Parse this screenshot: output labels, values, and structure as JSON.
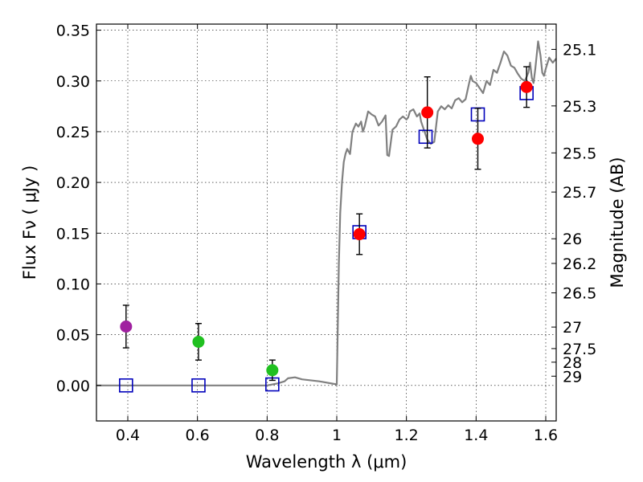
{
  "chart_data": {
    "type": "scatter",
    "xlabel": "Wavelength  λ (μm)",
    "ylabel": "Flux  Fν  ( μJy )",
    "ylabel_right": "Magnitude (AB)",
    "xlim": [
      0.31,
      1.63
    ],
    "ylim": [
      -0.035,
      0.356
    ],
    "grid": true,
    "x_ticks": [
      0.4,
      0.6,
      0.8,
      1.0,
      1.2,
      1.4,
      1.6
    ],
    "x_tick_labels": [
      "0.4",
      "0.6",
      "0.8",
      "1",
      "1.2",
      "1.4",
      "1.6"
    ],
    "y_ticks": [
      0.0,
      0.05,
      0.1,
      0.15,
      0.2,
      0.25,
      0.3,
      0.35
    ],
    "y_tick_labels": [
      "0.00",
      "0.05",
      "0.10",
      "0.15",
      "0.20",
      "0.25",
      "0.30",
      "0.35"
    ],
    "mag_ticks": [
      {
        "label": "25.1",
        "flux": 0.3311
      },
      {
        "label": "25.3",
        "flux": 0.2754
      },
      {
        "label": "25.5",
        "flux": 0.2291
      },
      {
        "label": "25.7",
        "flux": 0.1905
      },
      {
        "label": "26",
        "flux": 0.1445
      },
      {
        "label": "26.2",
        "flux": 0.1202
      },
      {
        "label": "26.5",
        "flux": 0.0912
      },
      {
        "label": "27",
        "flux": 0.0575
      },
      {
        "label": "27.5",
        "flux": 0.0363
      },
      {
        "label": "28",
        "flux": 0.0229
      },
      {
        "label": "29",
        "flux": 0.0091
      }
    ],
    "observed": [
      {
        "x": 0.395,
        "y": 0.058,
        "err": 0.021,
        "color": "#a020a0"
      },
      {
        "x": 0.603,
        "y": 0.043,
        "err": 0.018,
        "color": "#20c020"
      },
      {
        "x": 0.815,
        "y": 0.015,
        "err": 0.01,
        "color": "#20c020"
      },
      {
        "x": 1.065,
        "y": 0.149,
        "err": 0.02,
        "color": "#ff0000"
      },
      {
        "x": 1.26,
        "y": 0.269,
        "err": 0.035,
        "color": "#ff0000"
      },
      {
        "x": 1.405,
        "y": 0.243,
        "err": 0.03,
        "color": "#ff0000"
      },
      {
        "x": 1.545,
        "y": 0.294,
        "err": 0.02,
        "color": "#ff0000"
      }
    ],
    "model_points": [
      {
        "x": 0.395,
        "y": 0.0
      },
      {
        "x": 0.603,
        "y": 0.0
      },
      {
        "x": 0.815,
        "y": 0.001
      },
      {
        "x": 1.065,
        "y": 0.151
      },
      {
        "x": 1.255,
        "y": 0.245
      },
      {
        "x": 1.405,
        "y": 0.267
      },
      {
        "x": 1.545,
        "y": 0.288
      }
    ],
    "model_color": "#0000bb",
    "spectrum_color": "#808080",
    "spectrum": [
      [
        0.31,
        0.0
      ],
      [
        0.8,
        0.0
      ],
      [
        0.83,
        0.002
      ],
      [
        0.85,
        0.004
      ],
      [
        0.86,
        0.007
      ],
      [
        0.88,
        0.008
      ],
      [
        0.9,
        0.006
      ],
      [
        0.95,
        0.004
      ],
      [
        1.0,
        0.001
      ],
      [
        1.003,
        0.06
      ],
      [
        1.006,
        0.12
      ],
      [
        1.01,
        0.17
      ],
      [
        1.015,
        0.2
      ],
      [
        1.02,
        0.22
      ],
      [
        1.025,
        0.228
      ],
      [
        1.03,
        0.233
      ],
      [
        1.038,
        0.228
      ],
      [
        1.045,
        0.25
      ],
      [
        1.055,
        0.258
      ],
      [
        1.062,
        0.255
      ],
      [
        1.07,
        0.26
      ],
      [
        1.075,
        0.25
      ],
      [
        1.08,
        0.255
      ],
      [
        1.09,
        0.27
      ],
      [
        1.1,
        0.267
      ],
      [
        1.11,
        0.265
      ],
      [
        1.12,
        0.256
      ],
      [
        1.13,
        0.26
      ],
      [
        1.14,
        0.266
      ],
      [
        1.145,
        0.227
      ],
      [
        1.15,
        0.226
      ],
      [
        1.16,
        0.252
      ],
      [
        1.17,
        0.255
      ],
      [
        1.18,
        0.262
      ],
      [
        1.19,
        0.265
      ],
      [
        1.2,
        0.262
      ],
      [
        1.205,
        0.264
      ],
      [
        1.21,
        0.27
      ],
      [
        1.22,
        0.272
      ],
      [
        1.23,
        0.265
      ],
      [
        1.238,
        0.268
      ],
      [
        1.242,
        0.26
      ],
      [
        1.26,
        0.242
      ],
      [
        1.27,
        0.238
      ],
      [
        1.28,
        0.24
      ],
      [
        1.29,
        0.27
      ],
      [
        1.3,
        0.275
      ],
      [
        1.31,
        0.272
      ],
      [
        1.32,
        0.276
      ],
      [
        1.33,
        0.273
      ],
      [
        1.34,
        0.281
      ],
      [
        1.35,
        0.283
      ],
      [
        1.36,
        0.279
      ],
      [
        1.37,
        0.282
      ],
      [
        1.38,
        0.298
      ],
      [
        1.385,
        0.305
      ],
      [
        1.39,
        0.3
      ],
      [
        1.4,
        0.298
      ],
      [
        1.41,
        0.293
      ],
      [
        1.42,
        0.288
      ],
      [
        1.43,
        0.3
      ],
      [
        1.44,
        0.296
      ],
      [
        1.45,
        0.311
      ],
      [
        1.46,
        0.308
      ],
      [
        1.47,
        0.318
      ],
      [
        1.48,
        0.329
      ],
      [
        1.49,
        0.325
      ],
      [
        1.5,
        0.315
      ],
      [
        1.51,
        0.313
      ],
      [
        1.52,
        0.307
      ],
      [
        1.53,
        0.302
      ],
      [
        1.54,
        0.3
      ],
      [
        1.55,
        0.308
      ],
      [
        1.555,
        0.318
      ],
      [
        1.56,
        0.303
      ],
      [
        1.565,
        0.298
      ],
      [
        1.57,
        0.312
      ],
      [
        1.578,
        0.339
      ],
      [
        1.585,
        0.325
      ],
      [
        1.59,
        0.308
      ],
      [
        1.595,
        0.305
      ],
      [
        1.6,
        0.312
      ],
      [
        1.61,
        0.323
      ],
      [
        1.62,
        0.318
      ],
      [
        1.63,
        0.322
      ]
    ]
  }
}
